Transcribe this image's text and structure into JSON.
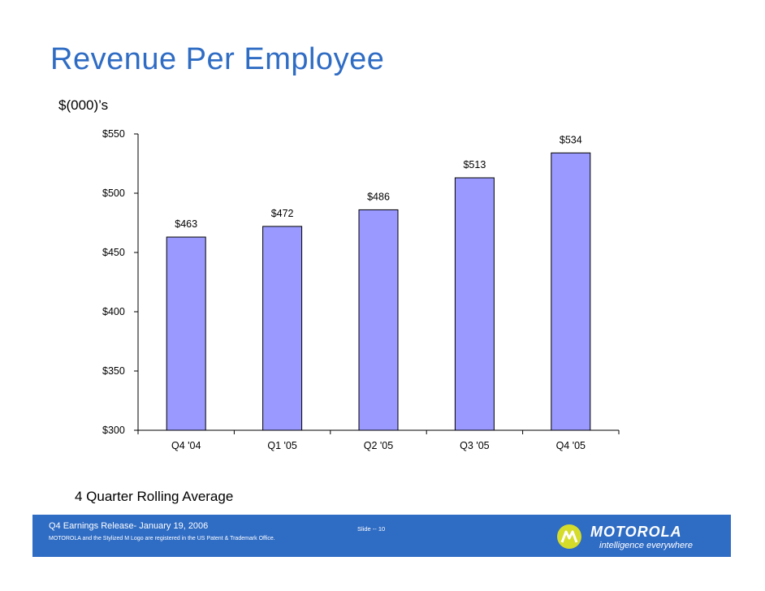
{
  "slide": {
    "title": "Revenue Per Employee",
    "units": "$(000)’s",
    "caption": "4 Quarter Rolling Average"
  },
  "chart_data": {
    "type": "bar",
    "categories": [
      "Q4 '04",
      "Q1 '05",
      "Q2 '05",
      "Q3 '05",
      "Q4 '05"
    ],
    "values": [
      463,
      472,
      486,
      513,
      534
    ],
    "data_labels": [
      "$463",
      "$472",
      "$486",
      "$513",
      "$534"
    ],
    "ylim": [
      300,
      550
    ],
    "yticks": [
      300,
      350,
      400,
      450,
      500,
      550
    ],
    "ytick_labels": [
      "$300",
      "$350",
      "$400",
      "$450",
      "$500",
      "$550"
    ],
    "bar_color": "#9999ff",
    "grid": false,
    "legend": "none"
  },
  "footer": {
    "left_line1": "Q4 Earnings Release- January 19, 2006",
    "left_line2": "MOTOROLA and the Stylized M Logo are registered in the US Patent & Trademark Office.",
    "slide_number": "Slide -- 10",
    "brand": "MOTOROLA",
    "tagline": "intelligence everywhere",
    "logo_icon": "motorola-m-logo",
    "bar_color": "#2f6cc4"
  }
}
